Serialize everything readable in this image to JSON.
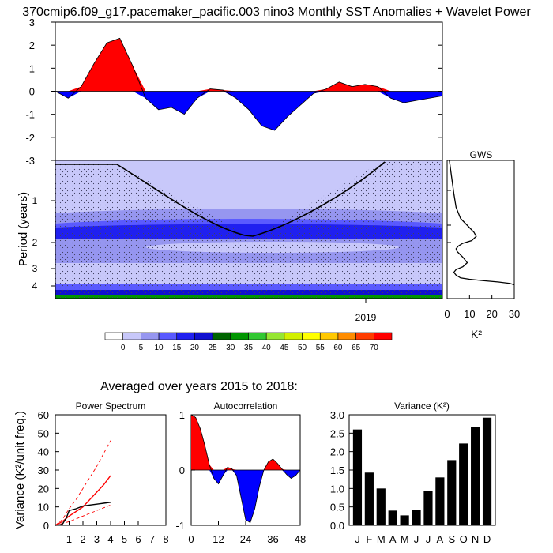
{
  "figure": {
    "title": "370cmip6.f09_g17.pacemaker_pacific.003 nino3 Monthly SST Anomalies + Wavelet Power",
    "subtitle": "Averaged over years 2015 to 2018:"
  },
  "chart_data": [
    {
      "id": "anomaly",
      "type": "area",
      "x": [
        0,
        2,
        4,
        6,
        8,
        10,
        12,
        14,
        16,
        18,
        20,
        22,
        24,
        26,
        28,
        30,
        32,
        34,
        36,
        38,
        40,
        42,
        44,
        46,
        48,
        50,
        52,
        54,
        56,
        58,
        60
      ],
      "values": [
        0,
        -0.3,
        0.2,
        1.2,
        2.1,
        2.3,
        1.1,
        -0.3,
        -0.8,
        -0.7,
        -1.0,
        -0.3,
        0.1,
        0.05,
        -0.3,
        -0.8,
        -1.5,
        -1.7,
        -1.1,
        -0.6,
        -0.1,
        0.1,
        0.4,
        0.2,
        0.3,
        0.2,
        -0.3,
        -0.5,
        -0.4,
        -0.3,
        -0.2
      ],
      "ylim": [
        -3,
        3
      ],
      "yticks": [
        "3",
        "2",
        "1",
        "0",
        "-1",
        "-2",
        "-3"
      ],
      "pos_color": "#ff0000",
      "neg_color": "#0000ff"
    },
    {
      "id": "wavelet",
      "type": "heatmap",
      "ylabel": "Period (years)",
      "yticks": [
        "1",
        "2",
        "3",
        "4"
      ],
      "xticks": [
        "2019"
      ],
      "colorbar_labels": [
        "0",
        "5",
        "10",
        "15",
        "20",
        "25",
        "30",
        "35",
        "40",
        "45",
        "50",
        "55",
        "60",
        "65",
        "70"
      ],
      "colorbar_colors": [
        "#ffffff",
        "#c8c8fa",
        "#9696f0",
        "#5a5aff",
        "#2020f0",
        "#1010d0",
        "#006400",
        "#009600",
        "#32c832",
        "#96e632",
        "#d2f000",
        "#ffff00",
        "#ffc800",
        "#ff8c00",
        "#ff3c00",
        "#ff0000"
      ]
    },
    {
      "id": "gws",
      "type": "line",
      "title": "GWS",
      "xlabel": "K²",
      "xticks": [
        "0",
        "10",
        "20",
        "30"
      ],
      "xlim": [
        0,
        30
      ],
      "x": [
        1,
        2,
        3,
        4,
        6,
        9,
        12,
        13,
        11,
        7,
        5,
        4,
        4.5,
        7,
        9,
        7,
        4,
        3,
        4,
        6,
        10,
        16,
        23,
        28,
        30
      ],
      "y": [
        0.0,
        0.12,
        0.24,
        0.34,
        0.42,
        0.47,
        0.52,
        0.55,
        0.58,
        0.6,
        0.62,
        0.64,
        0.66,
        0.7,
        0.74,
        0.77,
        0.79,
        0.81,
        0.83,
        0.85,
        0.86,
        0.87,
        0.88,
        0.89,
        0.9
      ]
    },
    {
      "id": "power-spectrum",
      "type": "line",
      "title": "Power Spectrum",
      "ylabel": "Variance (K²/unit freq.)",
      "xticks": [
        "1",
        "2",
        "3",
        "4",
        "5",
        "6",
        "7",
        "8"
      ],
      "yticks": [
        "0",
        "10",
        "20",
        "30",
        "40",
        "50",
        "60"
      ],
      "xlim": [
        0,
        8
      ],
      "ylim": [
        0,
        60
      ],
      "series": [
        {
          "x": [
            0,
            0.5,
            1,
            1.5,
            2,
            2.5,
            3,
            3.5,
            4
          ],
          "values": [
            0,
            2,
            5,
            7.5,
            10,
            14,
            18,
            22,
            27
          ],
          "color": "#ff0000",
          "style": "solid"
        },
        {
          "x": [
            0,
            0.5,
            1,
            1.5,
            2,
            2.5,
            3,
            3.5,
            4
          ],
          "values": [
            0,
            3,
            9,
            14,
            20,
            26,
            32,
            39,
            46
          ],
          "color": "#ff0000",
          "style": "dashed"
        },
        {
          "x": [
            0,
            0.5,
            1,
            1.5,
            2,
            2.5,
            3,
            3.5,
            4
          ],
          "values": [
            0,
            1,
            2,
            3.5,
            5,
            6.5,
            8,
            9.5,
            11
          ],
          "color": "#ff0000",
          "style": "dashed"
        },
        {
          "x": [
            0,
            0.5,
            0.8,
            1,
            1.5,
            2,
            2.5,
            3,
            3.5,
            4
          ],
          "values": [
            0,
            0.5,
            4,
            8,
            9,
            10.5,
            11,
            11.5,
            12,
            12.5
          ],
          "color": "#000000",
          "style": "solid"
        }
      ]
    },
    {
      "id": "autocorrelation",
      "type": "area",
      "title": "Autocorrelation",
      "xticks": [
        "0",
        "12",
        "24",
        "36",
        "48"
      ],
      "yticks": [
        "1",
        "0",
        "-1"
      ],
      "xlim": [
        0,
        48
      ],
      "ylim": [
        -1,
        1
      ],
      "x": [
        0,
        2,
        4,
        6,
        8,
        10,
        12,
        14,
        16,
        18,
        20,
        22,
        24,
        26,
        28,
        30,
        32,
        34,
        36,
        38,
        40,
        42,
        44,
        46,
        48
      ],
      "values": [
        1,
        0.95,
        0.75,
        0.45,
        0.1,
        -0.15,
        -0.25,
        -0.1,
        0.05,
        0.02,
        -0.1,
        -0.5,
        -0.9,
        -0.95,
        -0.7,
        -0.3,
        0,
        0.15,
        0.2,
        0.12,
        0.02,
        -0.08,
        -0.15,
        -0.1,
        0
      ],
      "pos_color": "#ff0000",
      "neg_color": "#0000ff"
    },
    {
      "id": "variance",
      "type": "bar",
      "title": "Variance (K²)",
      "categories": [
        "J",
        "F",
        "M",
        "A",
        "M",
        "J",
        "J",
        "A",
        "S",
        "O",
        "N",
        "D"
      ],
      "values": [
        2.6,
        1.43,
        1.0,
        0.4,
        0.27,
        0.42,
        0.93,
        1.3,
        1.77,
        2.22,
        2.67,
        2.92
      ],
      "yticks": [
        "0.0",
        "0.5",
        "1.0",
        "1.5",
        "2.0",
        "2.5",
        "3.0"
      ],
      "ylim": [
        0,
        3.0
      ]
    }
  ]
}
